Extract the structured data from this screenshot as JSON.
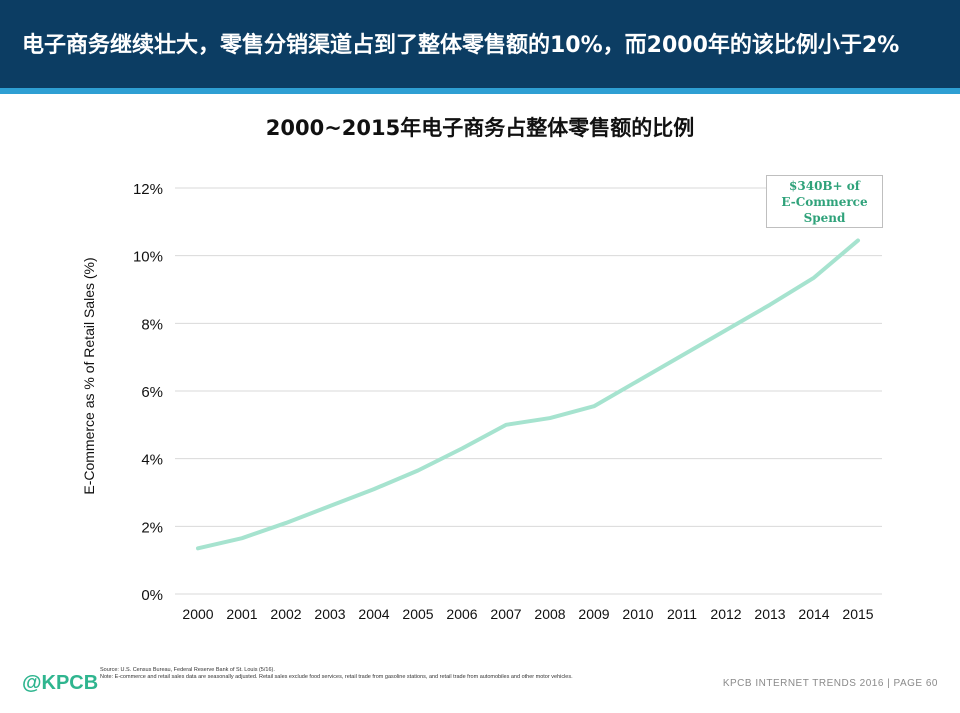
{
  "header": {
    "title": "电子商务继续壮大，零售分销渠道占到了整体零售额的10%，而2000年的该比例小于2%"
  },
  "colors": {
    "header_bg": "#0c3d63",
    "header_accent": "#2e9fd3",
    "line": "#a6e3cf",
    "callout_text": "#2fa27a",
    "logo": "#2fb58f"
  },
  "callout": {
    "line1": "$340B+ of",
    "line2": "E-Commerce",
    "line3": "Spend"
  },
  "chart_data": {
    "type": "line",
    "title": "2000~2015年电子商务占整体零售额的比例",
    "xlabel": "",
    "ylabel": "E-Commerce as % of Retail Sales (%)",
    "categories": [
      "2000",
      "2001",
      "2002",
      "2003",
      "2004",
      "2005",
      "2006",
      "2007",
      "2008",
      "2009",
      "2010",
      "2011",
      "2012",
      "2013",
      "2014",
      "2015"
    ],
    "series": [
      {
        "values": [
          1.35,
          1.65,
          2.1,
          2.6,
          3.1,
          3.65,
          4.3,
          5.0,
          5.2,
          5.55,
          6.3,
          7.05,
          7.8,
          8.55,
          9.35,
          10.45
        ]
      }
    ],
    "ylim": [
      0,
      12
    ],
    "yticks": [
      0,
      2,
      4,
      6,
      8,
      10,
      12
    ],
    "ytick_labels": [
      "0%",
      "2%",
      "4%",
      "6%",
      "8%",
      "10%",
      "12%"
    ],
    "grid": "horizontal",
    "legend": "none"
  },
  "footer": {
    "logo": "@KPCB",
    "source": "Source: U.S. Census Bureau, Federal Reserve Bank of St. Louis (5/16).",
    "note": "Note: E-commerce and retail sales data are seasonally adjusted. Retail sales exclude food services, retail trade from gasoline stations, and retail trade from automobiles and other motor vehicles.",
    "page": "KPCB INTERNET TRENDS 2016  |  PAGE 60"
  }
}
